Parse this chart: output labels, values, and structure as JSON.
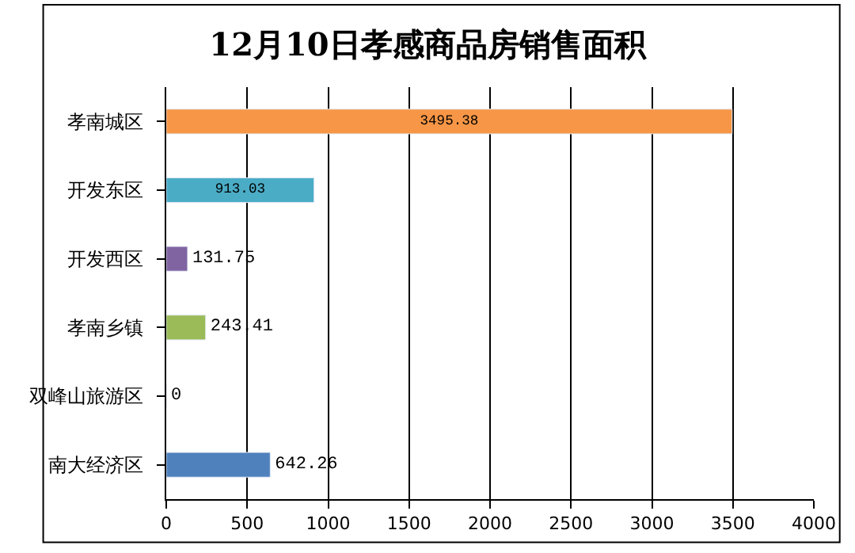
{
  "chart_data": {
    "type": "bar",
    "orientation": "horizontal",
    "title": "12月10日孝感商品房销售面积",
    "categories": [
      "孝南城区",
      "开发东区",
      "开发西区",
      "孝南乡镇",
      "双峰山旅游区",
      "南大经济区"
    ],
    "values": [
      3495.38,
      913.03,
      131.75,
      243.41,
      0,
      642.26
    ],
    "colors": [
      "#f79646",
      "#4bacc6",
      "#8064a2",
      "#9bbb59",
      null,
      "#4f81bd"
    ],
    "xlim": [
      0,
      4000
    ],
    "xticks": [
      0,
      500,
      1000,
      1500,
      2000,
      2500,
      3000,
      3500,
      4000
    ],
    "grid": "x",
    "data_labels": true,
    "legend": false
  }
}
